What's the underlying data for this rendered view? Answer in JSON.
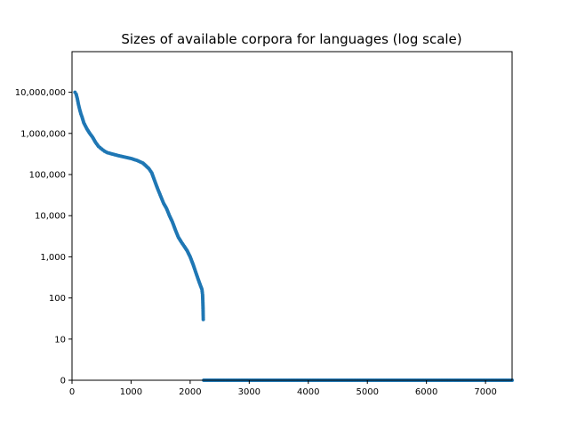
{
  "chart_data": {
    "type": "scatter",
    "title": "Sizes of available corpora for languages (log scale)",
    "xlabel": "",
    "ylabel": "",
    "xlim": [
      0,
      7450
    ],
    "ylim": [
      0,
      100000000
    ],
    "y_scale": "log",
    "grid": false,
    "x_ticks": [
      0,
      1000,
      2000,
      3000,
      4000,
      5000,
      6000,
      7000
    ],
    "x_tick_labels": [
      "0",
      "1000",
      "2000",
      "3000",
      "4000",
      "5000",
      "6000",
      "7000"
    ],
    "y_ticks": [
      0,
      10,
      100,
      1000,
      10000,
      100000,
      1000000,
      10000000
    ],
    "y_tick_labels": [
      "0",
      "10",
      "100",
      "1,000",
      "10,000",
      "100,000",
      "1,000,000",
      "10,000,000"
    ],
    "series": [
      {
        "color": "#1f77b4",
        "points": [
          [
            50,
            10000000
          ],
          [
            70,
            9000000
          ],
          [
            90,
            7000000
          ],
          [
            110,
            5000000
          ],
          [
            130,
            3800000
          ],
          [
            150,
            3000000
          ],
          [
            170,
            2500000
          ],
          [
            200,
            1800000
          ],
          [
            250,
            1300000
          ],
          [
            300,
            1000000
          ],
          [
            350,
            800000
          ],
          [
            400,
            600000
          ],
          [
            450,
            480000
          ],
          [
            500,
            420000
          ],
          [
            550,
            370000
          ],
          [
            600,
            340000
          ],
          [
            700,
            310000
          ],
          [
            800,
            285000
          ],
          [
            900,
            265000
          ],
          [
            1000,
            245000
          ],
          [
            1100,
            220000
          ],
          [
            1200,
            190000
          ],
          [
            1300,
            140000
          ],
          [
            1350,
            110000
          ],
          [
            1400,
            70000
          ],
          [
            1450,
            45000
          ],
          [
            1500,
            30000
          ],
          [
            1550,
            20000
          ],
          [
            1600,
            15000
          ],
          [
            1650,
            10000
          ],
          [
            1700,
            7000
          ],
          [
            1750,
            4500
          ],
          [
            1800,
            3000
          ],
          [
            1850,
            2300
          ],
          [
            1900,
            1800
          ],
          [
            1950,
            1400
          ],
          [
            2000,
            1000
          ],
          [
            2050,
            650
          ],
          [
            2100,
            400
          ],
          [
            2150,
            250
          ],
          [
            2200,
            160
          ],
          [
            2210,
            120
          ],
          [
            2215,
            80
          ],
          [
            2218,
            55
          ],
          [
            2220,
            40
          ],
          [
            2222,
            30
          ],
          [
            2230,
            0
          ],
          [
            3000,
            0
          ],
          [
            4000,
            0
          ],
          [
            5000,
            0
          ],
          [
            6000,
            0
          ],
          [
            7000,
            0
          ],
          [
            7450,
            0
          ]
        ]
      }
    ]
  }
}
